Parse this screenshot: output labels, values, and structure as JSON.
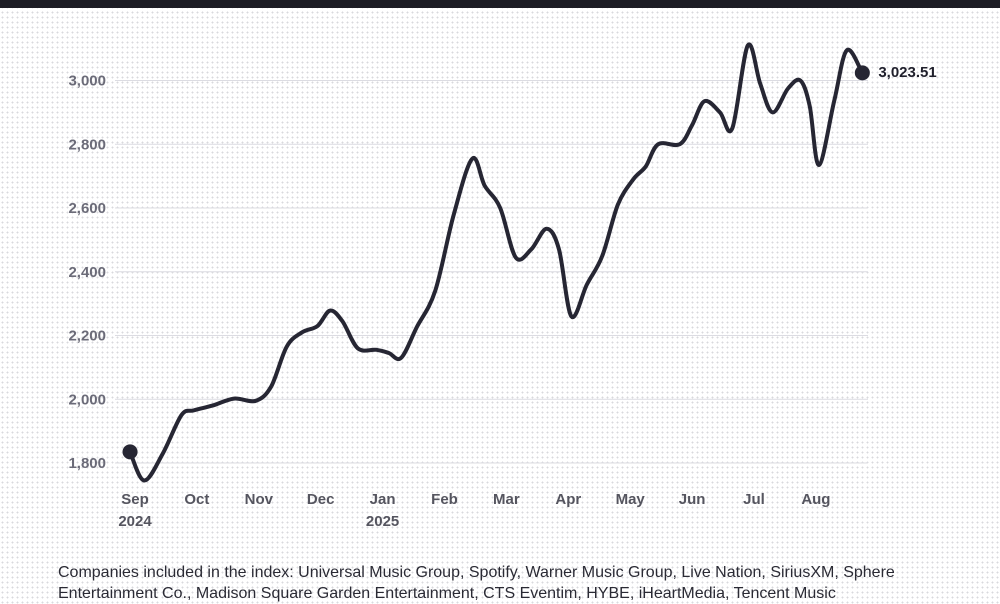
{
  "chart_data": {
    "type": "line",
    "ylim": [
      1740,
      3120
    ],
    "y_ticks": [
      1800,
      2000,
      2200,
      2400,
      2600,
      2800,
      3000
    ],
    "y_tick_labels": [
      "1,800",
      "2,000",
      "2,200",
      "2,400",
      "2,600",
      "2,800",
      "3,000"
    ],
    "x_ticks": [
      {
        "label": "Sep",
        "sub": "2024",
        "x": 0
      },
      {
        "label": "Oct",
        "sub": "",
        "x": 1
      },
      {
        "label": "Nov",
        "sub": "",
        "x": 2
      },
      {
        "label": "Dec",
        "sub": "",
        "x": 3
      },
      {
        "label": "Jan",
        "sub": "2025",
        "x": 4
      },
      {
        "label": "Feb",
        "sub": "",
        "x": 5
      },
      {
        "label": "Mar",
        "sub": "",
        "x": 6
      },
      {
        "label": "Apr",
        "sub": "",
        "x": 7
      },
      {
        "label": "May",
        "sub": "",
        "x": 8
      },
      {
        "label": "Jun",
        "sub": "",
        "x": 9
      },
      {
        "label": "Jul",
        "sub": "",
        "x": 10
      },
      {
        "label": "Aug",
        "sub": "",
        "x": 11
      }
    ],
    "grid": true,
    "series": [
      {
        "color": "#262633",
        "points": [
          [
            -0.08,
            1835
          ],
          [
            0.15,
            1745
          ],
          [
            0.45,
            1830
          ],
          [
            0.75,
            1950
          ],
          [
            0.95,
            1965
          ],
          [
            1.25,
            1980
          ],
          [
            1.6,
            2002
          ],
          [
            1.95,
            1995
          ],
          [
            2.2,
            2040
          ],
          [
            2.45,
            2165
          ],
          [
            2.7,
            2210
          ],
          [
            2.95,
            2230
          ],
          [
            3.15,
            2278
          ],
          [
            3.35,
            2245
          ],
          [
            3.6,
            2160
          ],
          [
            3.9,
            2155
          ],
          [
            4.1,
            2145
          ],
          [
            4.3,
            2130
          ],
          [
            4.55,
            2225
          ],
          [
            4.85,
            2340
          ],
          [
            5.15,
            2580
          ],
          [
            5.45,
            2755
          ],
          [
            5.65,
            2670
          ],
          [
            5.9,
            2600
          ],
          [
            6.15,
            2445
          ],
          [
            6.4,
            2470
          ],
          [
            6.65,
            2535
          ],
          [
            6.85,
            2470
          ],
          [
            7.05,
            2260
          ],
          [
            7.3,
            2360
          ],
          [
            7.55,
            2450
          ],
          [
            7.8,
            2610
          ],
          [
            8.05,
            2690
          ],
          [
            8.25,
            2730
          ],
          [
            8.45,
            2800
          ],
          [
            8.8,
            2800
          ],
          [
            9.0,
            2860
          ],
          [
            9.2,
            2935
          ],
          [
            9.45,
            2900
          ],
          [
            9.65,
            2850
          ],
          [
            9.9,
            3110
          ],
          [
            10.1,
            2990
          ],
          [
            10.3,
            2900
          ],
          [
            10.55,
            2975
          ],
          [
            10.75,
            3000
          ],
          [
            10.9,
            2920
          ],
          [
            11.05,
            2735
          ],
          [
            11.3,
            2940
          ],
          [
            11.5,
            3095
          ],
          [
            11.75,
            3024
          ]
        ]
      }
    ],
    "end_label": "3,023.51",
    "start_marker": true,
    "end_marker": true
  },
  "footnote": "Companies included in the index: Universal Music Group, Spotify, Warner Music Group, Live Nation, SiriusXM, Sphere Entertainment Co., Madison Square Garden Entertainment, CTS Eventim, HYBE, iHeartMedia, Tencent Music"
}
